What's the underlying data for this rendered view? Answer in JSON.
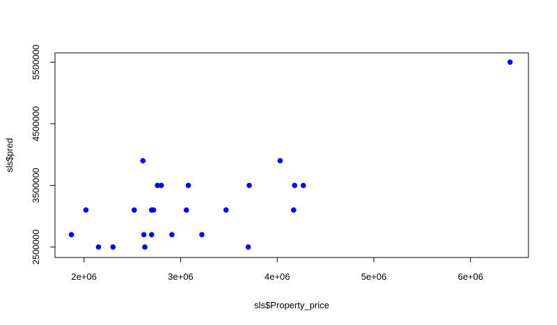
{
  "chart_data": {
    "type": "scatter",
    "xlabel": "sls$Property_price",
    "ylabel": "sls$pred",
    "xlim": [
      1700000,
      6600000
    ],
    "ylim": [
      2330000,
      5650000
    ],
    "x_ticks": [
      2000000,
      3000000,
      4000000,
      5000000,
      6000000
    ],
    "x_tick_labels": [
      "2e+06",
      "3e+06",
      "4e+06",
      "5e+06",
      "6e+06"
    ],
    "y_ticks": [
      2500000,
      3500000,
      4500000,
      5500000
    ],
    "y_tick_labels": [
      "2500000",
      "3500000",
      "4500000",
      "5500000"
    ],
    "grid": false,
    "legend": "none",
    "point_color": "#0000ff",
    "series": [
      {
        "points": [
          {
            "x": 1870000,
            "y": 2700000
          },
          {
            "x": 2020000,
            "y": 3100000
          },
          {
            "x": 2150000,
            "y": 2500000
          },
          {
            "x": 2300000,
            "y": 2500000
          },
          {
            "x": 2520000,
            "y": 3100000
          },
          {
            "x": 2610000,
            "y": 3900000
          },
          {
            "x": 2620000,
            "y": 2700000
          },
          {
            "x": 2630000,
            "y": 2500000
          },
          {
            "x": 2700000,
            "y": 2700000
          },
          {
            "x": 2700000,
            "y": 3100000
          },
          {
            "x": 2720000,
            "y": 3100000
          },
          {
            "x": 2760000,
            "y": 3500000
          },
          {
            "x": 2800000,
            "y": 3500000
          },
          {
            "x": 2910000,
            "y": 2700000
          },
          {
            "x": 3060000,
            "y": 3100000
          },
          {
            "x": 3080000,
            "y": 3500000
          },
          {
            "x": 3220000,
            "y": 2700000
          },
          {
            "x": 3470000,
            "y": 3100000
          },
          {
            "x": 3700000,
            "y": 2500000
          },
          {
            "x": 3710000,
            "y": 3500000
          },
          {
            "x": 4030000,
            "y": 3900000
          },
          {
            "x": 4170000,
            "y": 3100000
          },
          {
            "x": 4180000,
            "y": 3500000
          },
          {
            "x": 4270000,
            "y": 3500000
          },
          {
            "x": 6410000,
            "y": 5500000
          }
        ]
      }
    ]
  }
}
